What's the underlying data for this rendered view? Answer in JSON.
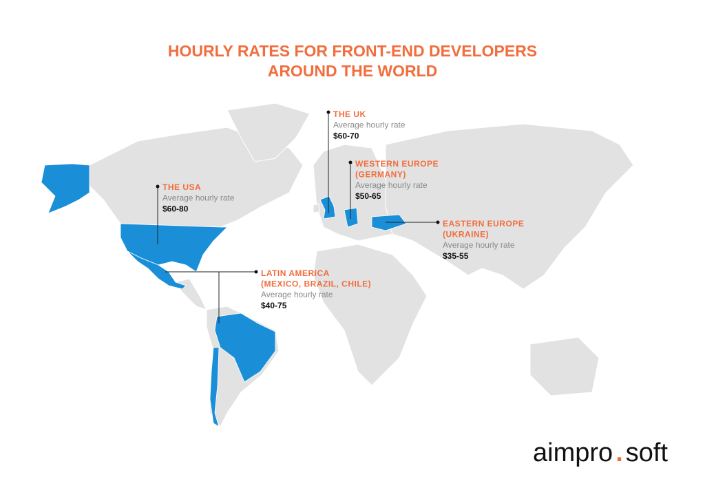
{
  "header": {
    "title": [
      "HOURLY RATES FOR FRONT-END DEVELOPERS",
      "AROUND THE WORLD"
    ]
  },
  "regions": [
    {
      "name": [
        "THE USA"
      ],
      "caption": "Average hourly rate",
      "rate": "$60-80"
    },
    {
      "name": [
        "THE UK"
      ],
      "caption": "Average hourly rate",
      "rate": "$60-70"
    },
    {
      "name": [
        "WESTERN EUROPE",
        "(GERMANY)"
      ],
      "caption": "Average hourly rate",
      "rate": "$50-65"
    },
    {
      "name": [
        "EASTERN EUROPE",
        "(UKRAINE)"
      ],
      "caption": "Average hourly rate",
      "rate": "$35-55"
    },
    {
      "name": [
        "LATIN AMERICA",
        "(MEXICO, BRAZIL, CHILE)"
      ],
      "caption": "Average hourly rate",
      "rate": "$40-75"
    }
  ],
  "logo": {
    "left": "aimpro",
    "dot": ".",
    "right": "soft"
  }
}
